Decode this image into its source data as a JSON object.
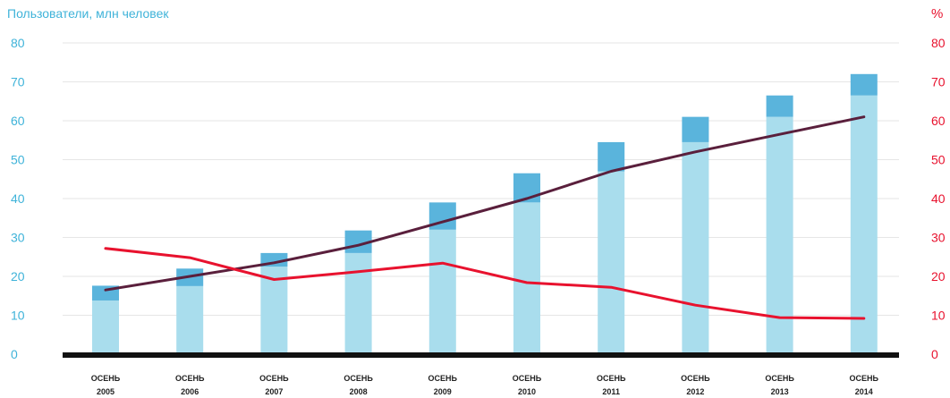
{
  "chart_data": {
    "type": "bar",
    "title": "Пользователи, млн человек",
    "right_axis_label": "%",
    "left_axis": {
      "ylim": [
        0,
        80
      ],
      "ticks": [
        "0",
        "10",
        "20",
        "30",
        "40",
        "50",
        "60",
        "70",
        "80"
      ]
    },
    "right_axis": {
      "ylim": [
        0,
        80
      ],
      "ticks": [
        "0",
        "10",
        "20",
        "30",
        "40",
        "50",
        "60",
        "70",
        "80"
      ]
    },
    "categories": [
      [
        "ОСЕНЬ",
        "2005"
      ],
      [
        "ОСЕНЬ",
        "2006"
      ],
      [
        "ОСЕНЬ",
        "2007"
      ],
      [
        "ОСЕНЬ",
        "2008"
      ],
      [
        "ОСЕНЬ",
        "2009"
      ],
      [
        "ОСЕНЬ",
        "2010"
      ],
      [
        "ОСЕНЬ",
        "2011"
      ],
      [
        "ОСЕНЬ",
        "2012"
      ],
      [
        "ОСЕНЬ",
        "2013"
      ],
      [
        "ОСЕНЬ",
        "2014"
      ]
    ],
    "stacked_bars": [
      {
        "axis": "left",
        "values": [
          13.8,
          17.5,
          22.5,
          26,
          32,
          39,
          47,
          54.5,
          61,
          66.5
        ],
        "color": "#a9dded"
      },
      {
        "axis": "left",
        "values": [
          3.8,
          4.5,
          3.5,
          5.8,
          7,
          7.5,
          7.5,
          6.5,
          5.5,
          5.5
        ],
        "color": "#5ab4dc"
      }
    ],
    "lines": [
      {
        "axis": "left",
        "values": [
          16.5,
          20,
          23.5,
          28,
          34,
          40,
          47,
          52,
          56.5,
          61
        ],
        "color": "#5a1f3c"
      },
      {
        "axis": "right",
        "values": [
          27.2,
          24.8,
          19.2,
          21.2,
          23.4,
          18.4,
          17.2,
          12.6,
          9.4,
          9.2
        ],
        "color": "#e8122e"
      }
    ],
    "grid": true,
    "colors": {
      "left_axis": "#3fb3d9",
      "right_axis": "#e8122e",
      "baseline": "#111111",
      "grid": "#e6e6e6"
    }
  }
}
